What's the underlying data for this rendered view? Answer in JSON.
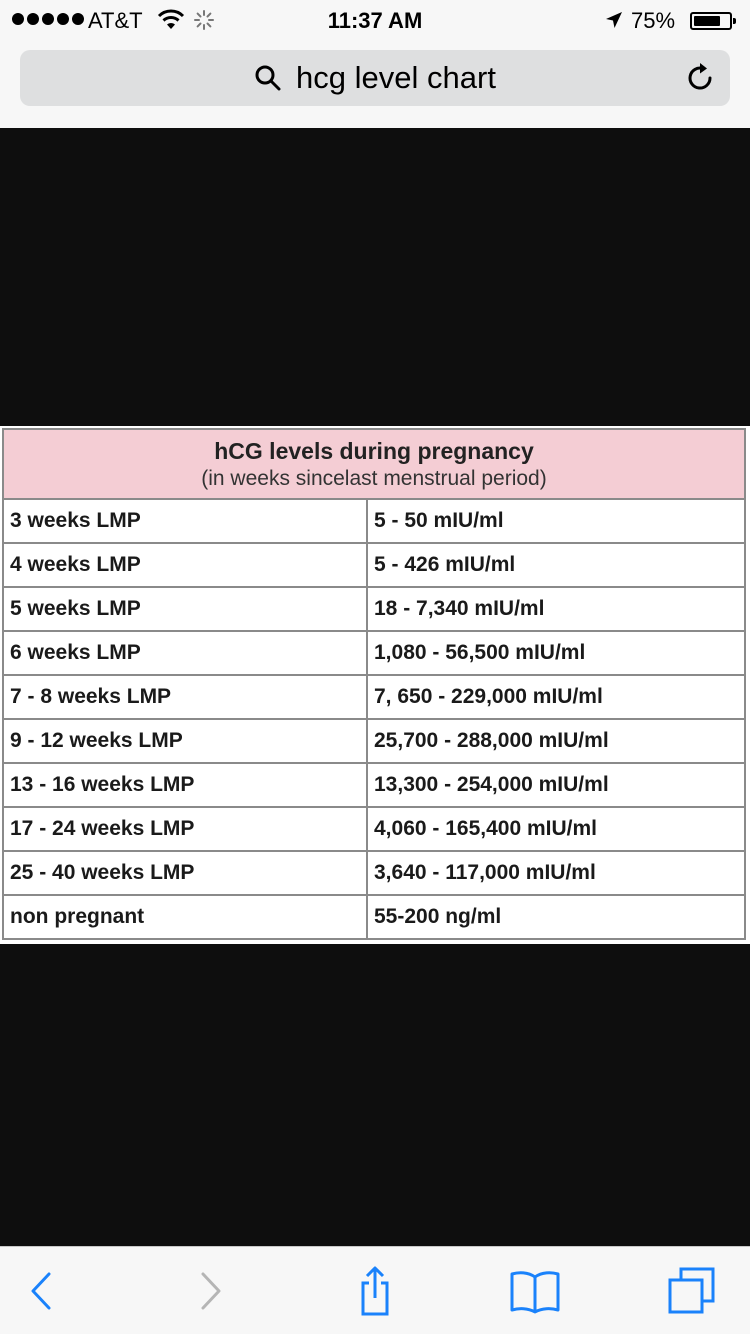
{
  "status_bar": {
    "carrier": "AT&T",
    "time": "11:37 AM",
    "battery_percent": "75%",
    "battery_level": 0.75,
    "signal_bars": 5
  },
  "browser": {
    "url_text": "hcg level chart",
    "search_icon": "search-icon",
    "reload_icon": "reload-icon"
  },
  "table": {
    "title": "hCG levels during pregnancy",
    "subtitle": "(in weeks sincelast menstrual period)",
    "rows": [
      {
        "week": "3 weeks LMP",
        "level": "5 - 50 mIU/ml"
      },
      {
        "week": "4 weeks LMP",
        "level": "5 - 426 mIU/ml"
      },
      {
        "week": "5 weeks LMP",
        "level": "18 - 7,340 mIU/ml"
      },
      {
        "week": "6 weeks LMP",
        "level": "1,080 - 56,500 mIU/ml"
      },
      {
        "week": "7 - 8 weeks LMP",
        "level": "7, 650 - 229,000 mIU/ml"
      },
      {
        "week": "9 - 12 weeks LMP",
        "level": "25,700 - 288,000 mIU/ml"
      },
      {
        "week": "13 - 16 weeks LMP",
        "level": "13,300 - 254,000 mIU/ml"
      },
      {
        "week": "17 - 24 weeks LMP",
        "level": "4,060 - 165,400 mIU/ml"
      },
      {
        "week": "25 - 40 weeks LMP",
        "level": "3,640 - 117,000 mIU/ml"
      },
      {
        "week": "non pregnant",
        "level": "55-200 ng/ml"
      }
    ]
  },
  "toolbar": {
    "icons": [
      "back-icon",
      "forward-icon",
      "share-icon",
      "bookmarks-icon",
      "tabs-icon"
    ]
  },
  "colors": {
    "accent": "#1a82fb",
    "disabled": "#b5b5b5",
    "header_pink": "#f4cdd4",
    "background": "#0e0e0e"
  }
}
